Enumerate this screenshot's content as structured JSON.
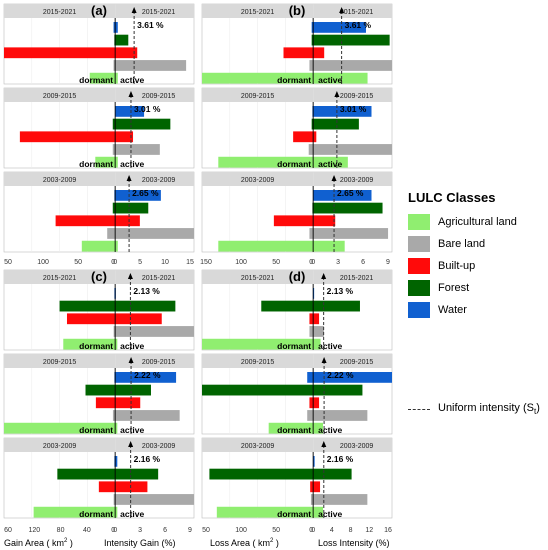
{
  "colors": {
    "agri": "#90ee70",
    "bare": "#a9a9a9",
    "built": "#ff0a0a",
    "forest": "#006400",
    "water": "#1060d0"
  },
  "legend": {
    "title": "LULC Classes",
    "items": [
      {
        "key": "agri",
        "label": "Agricultural land"
      },
      {
        "key": "bare",
        "label": "Bare land"
      },
      {
        "key": "built",
        "label": "Built-up"
      },
      {
        "key": "forest",
        "label": "Forest"
      },
      {
        "key": "water",
        "label": "Water"
      }
    ],
    "uniform_label": "Uniform intensity (S",
    "uniform_sub": "t",
    "uniform_close": ")"
  },
  "axis_titles": {
    "gain_area": "Gain Area ( km",
    "gain_intensity": "Intensity Gain (%)",
    "loss_area": "Loss Area ( km",
    "loss_intensity": "Loss Intensity (%)",
    "sq": "2",
    "close": " )"
  },
  "dormant_label": "dormant",
  "active_label": "active",
  "chart_data": [
    {
      "type": "bar",
      "panel": "a",
      "label": "(a)",
      "area_ticks": [
        "50",
        "100",
        "50",
        "0"
      ],
      "area_max": 140,
      "intensity_ticks": [
        "0",
        "5",
        "10",
        "15"
      ],
      "intensity_max": 15,
      "facets": [
        {
          "period": "2015-2021",
          "uniform": 3.61,
          "uniform_label": "3.61 %",
          "area": {
            "water": 2,
            "forest": 1,
            "built": 140,
            "bare": 2,
            "agri": 32
          },
          "intensity": {
            "water": 0.5,
            "forest": 2.5,
            "built": 4.2,
            "bare": 13.5,
            "agri": 0.5
          }
        },
        {
          "period": "2009-2015",
          "uniform": 3.01,
          "uniform_label": "3.01 %",
          "area": {
            "water": 0,
            "forest": 3,
            "built": 120,
            "bare": 3,
            "agri": 25
          },
          "intensity": {
            "water": 5.5,
            "forest": 10.5,
            "built": 3.4,
            "bare": 8.5,
            "agri": 0.5
          }
        },
        {
          "period": "2003-2009",
          "uniform": 2.65,
          "uniform_label": "2.65 %",
          "area": {
            "water": 1,
            "forest": 3,
            "built": 75,
            "bare": 10,
            "agri": 42
          },
          "intensity": {
            "water": 8.7,
            "forest": 6.3,
            "built": 4.7,
            "bare": 15.0,
            "agri": 0.5
          }
        }
      ]
    },
    {
      "type": "bar",
      "panel": "b",
      "label": "(b)",
      "area_ticks": [
        "150",
        "100",
        "50",
        "0",
        "3",
        "6",
        "9"
      ],
      "area_max": 150,
      "intensity_ticks": [
        "0",
        "3",
        "6",
        "9"
      ],
      "intensity_max": 10,
      "facets": [
        {
          "period": "2015-2021",
          "uniform": 3.61,
          "uniform_label": "3.61 %",
          "area": {
            "water": 2,
            "forest": 2,
            "built": 40,
            "bare": 5,
            "agri": 150
          },
          "intensity": {
            "water": 6.7,
            "forest": 9.7,
            "built": 1.4,
            "bare": 10.0,
            "agri": 6.9
          }
        },
        {
          "period": "2009-2015",
          "uniform": 3.01,
          "uniform_label": "3.01 %",
          "area": {
            "water": 1,
            "forest": 2,
            "built": 27,
            "bare": 6,
            "agri": 128
          },
          "intensity": {
            "water": 7.4,
            "forest": 5.8,
            "built": 0.4,
            "bare": 10.0,
            "agri": 4.4
          }
        },
        {
          "period": "2003-2009",
          "uniform": 2.65,
          "uniform_label": "2.65 %",
          "area": {
            "water": 0,
            "forest": 1,
            "built": 53,
            "bare": 5,
            "agri": 128
          },
          "intensity": {
            "water": 7.4,
            "forest": 8.8,
            "built": 2.8,
            "bare": 9.5,
            "agri": 4.0
          }
        }
      ]
    },
    {
      "type": "bar",
      "panel": "c",
      "label": "(c)",
      "area_ticks": [
        "60",
        "120",
        "80",
        "40",
        "0"
      ],
      "area_max": 150,
      "intensity_ticks": [
        "0",
        "3",
        "6",
        "9"
      ],
      "intensity_max": 11,
      "facets": [
        {
          "period": "2015-2021",
          "uniform": 2.13,
          "uniform_label": "2.13 %",
          "area": {
            "water": 1,
            "forest": 75,
            "built": 65,
            "bare": 2,
            "agri": 70
          },
          "intensity": {
            "water": 0.1,
            "forest": 8.4,
            "built": 6.5,
            "bare": 11.0,
            "agri": 0.3
          }
        },
        {
          "period": "2009-2015",
          "uniform": 2.22,
          "uniform_label": "2.22 %",
          "area": {
            "water": 1,
            "forest": 40,
            "built": 26,
            "bare": 3,
            "agri": 150
          },
          "intensity": {
            "water": 8.5,
            "forest": 5.0,
            "built": 3.5,
            "bare": 9.0,
            "agri": 0.3
          }
        },
        {
          "period": "2003-2009",
          "uniform": 2.16,
          "uniform_label": "2.16 %",
          "area": {
            "water": 1,
            "forest": 78,
            "built": 22,
            "bare": 2,
            "agri": 110
          },
          "intensity": {
            "water": 0.3,
            "forest": 6.0,
            "built": 4.5,
            "bare": 11.0,
            "agri": 0.3
          }
        }
      ]
    },
    {
      "type": "bar",
      "panel": "d",
      "label": "(d)",
      "area_ticks": [
        "50",
        "100",
        "50",
        "0",
        "4",
        "8",
        "12",
        "16"
      ],
      "area_max": 150,
      "intensity_ticks": [
        "0",
        "4",
        "8",
        "12",
        "16"
      ],
      "intensity_max": 16,
      "facets": [
        {
          "period": "2015-2021",
          "uniform": 2.13,
          "uniform_label": "2.13 %",
          "area": {
            "water": 0,
            "forest": 70,
            "built": 5,
            "bare": 5,
            "agri": 150
          },
          "intensity": {
            "water": 0.2,
            "forest": 9.5,
            "built": 1.2,
            "bare": 2.2,
            "agri": 1.5
          }
        },
        {
          "period": "2009-2015",
          "uniform": 2.22,
          "uniform_label": "2.22 %",
          "area": {
            "water": 8,
            "forest": 150,
            "built": 5,
            "bare": 8,
            "agri": 60
          },
          "intensity": {
            "water": 16.0,
            "forest": 10.0,
            "built": 1.2,
            "bare": 11.0,
            "agri": 2.0
          }
        },
        {
          "period": "2003-2009",
          "uniform": 2.16,
          "uniform_label": "2.16 %",
          "area": {
            "water": 0,
            "forest": 140,
            "built": 4,
            "bare": 3,
            "agri": 130
          },
          "intensity": {
            "water": 0.3,
            "forest": 7.8,
            "built": 1.4,
            "bare": 11.0,
            "agri": 2.0
          }
        }
      ]
    }
  ]
}
